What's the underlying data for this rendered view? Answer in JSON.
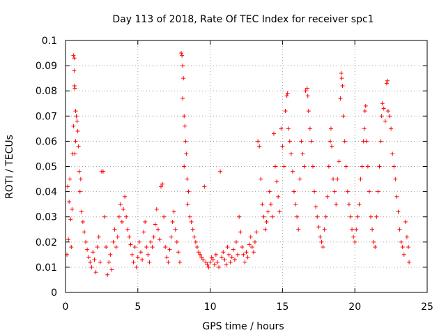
{
  "chart_data": {
    "type": "scatter",
    "title": "Day 113 of 2018, Rate Of TEC Index for receiver spc1",
    "xlabel": "GPS time / hours",
    "ylabel": "ROTI / TECUs",
    "xlim": [
      0,
      25
    ],
    "ylim": [
      0,
      0.1
    ],
    "xticks": [
      0,
      5,
      10,
      15,
      20,
      25
    ],
    "yticks": [
      0,
      0.01,
      0.02,
      0.03,
      0.04,
      0.05,
      0.06,
      0.07,
      0.08,
      0.09,
      0.1
    ],
    "xtick_labels": [
      "0",
      "5",
      "10",
      "15",
      "20",
      "25"
    ],
    "ytick_labels": [
      "0",
      "0.01",
      "0.02",
      "0.03",
      "0.04",
      "0.05",
      "0.06",
      "0.07",
      "0.08",
      "0.09",
      "0.1"
    ],
    "grid": true,
    "marker": "+",
    "series": [
      {
        "name": "ROTI",
        "color": "#ff0000",
        "points": [
          [
            0.1,
            0.015
          ],
          [
            0.15,
            0.042
          ],
          [
            0.2,
            0.021
          ],
          [
            0.25,
            0.036
          ],
          [
            0.3,
            0.045
          ],
          [
            0.35,
            0.029
          ],
          [
            0.4,
            0.018
          ],
          [
            0.45,
            0.033
          ],
          [
            0.5,
            0.055
          ],
          [
            0.55,
            0.066
          ],
          [
            0.55,
            0.094
          ],
          [
            0.6,
            0.093
          ],
          [
            0.6,
            0.088
          ],
          [
            0.62,
            0.082
          ],
          [
            0.65,
            0.081
          ],
          [
            0.7,
            0.072
          ],
          [
            0.75,
            0.07
          ],
          [
            0.8,
            0.068
          ],
          [
            0.85,
            0.064
          ],
          [
            0.9,
            0.058
          ],
          [
            0.7,
            0.06
          ],
          [
            0.65,
            0.055
          ],
          [
            0.95,
            0.048
          ],
          [
            1.0,
            0.04
          ],
          [
            1.05,
            0.045
          ],
          [
            1.1,
            0.032
          ],
          [
            1.2,
            0.028
          ],
          [
            1.3,
            0.024
          ],
          [
            1.4,
            0.02
          ],
          [
            1.5,
            0.017
          ],
          [
            1.6,
            0.014
          ],
          [
            1.7,
            0.012
          ],
          [
            1.8,
            0.01
          ],
          [
            1.9,
            0.016
          ],
          [
            2.0,
            0.013
          ],
          [
            2.1,
            0.008
          ],
          [
            2.2,
            0.018
          ],
          [
            2.3,
            0.022
          ],
          [
            2.4,
            0.012
          ],
          [
            2.5,
            0.048
          ],
          [
            2.6,
            0.048
          ],
          [
            2.7,
            0.03
          ],
          [
            2.8,
            0.018
          ],
          [
            2.9,
            0.007
          ],
          [
            3.0,
            0.012
          ],
          [
            3.1,
            0.015
          ],
          [
            3.2,
            0.009
          ],
          [
            3.3,
            0.02
          ],
          [
            3.4,
            0.025
          ],
          [
            3.5,
            0.018
          ],
          [
            3.6,
            0.022
          ],
          [
            3.7,
            0.03
          ],
          [
            3.8,
            0.035
          ],
          [
            3.9,
            0.028
          ],
          [
            4.0,
            0.033
          ],
          [
            4.1,
            0.038
          ],
          [
            4.2,
            0.03
          ],
          [
            4.3,
            0.025
          ],
          [
            4.4,
            0.022
          ],
          [
            4.5,
            0.019
          ],
          [
            4.6,
            0.015
          ],
          [
            4.7,
            0.012
          ],
          [
            4.8,
            0.018
          ],
          [
            4.9,
            0.01
          ],
          [
            5.0,
            0.014
          ],
          [
            5.1,
            0.02
          ],
          [
            5.2,
            0.016
          ],
          [
            5.3,
            0.013
          ],
          [
            5.4,
            0.024
          ],
          [
            5.5,
            0.028
          ],
          [
            5.6,
            0.018
          ],
          [
            5.7,
            0.015
          ],
          [
            5.8,
            0.012
          ],
          [
            5.9,
            0.02
          ],
          [
            6.0,
            0.018
          ],
          [
            6.1,
            0.022
          ],
          [
            6.2,
            0.027
          ],
          [
            6.3,
            0.033
          ],
          [
            6.4,
            0.025
          ],
          [
            6.5,
            0.021
          ],
          [
            6.6,
            0.042
          ],
          [
            6.7,
            0.043
          ],
          [
            6.8,
            0.03
          ],
          [
            6.9,
            0.018
          ],
          [
            7.0,
            0.014
          ],
          [
            7.1,
            0.012
          ],
          [
            7.2,
            0.017
          ],
          [
            7.3,
            0.022
          ],
          [
            7.4,
            0.028
          ],
          [
            7.5,
            0.032
          ],
          [
            7.6,
            0.025
          ],
          [
            7.7,
            0.02
          ],
          [
            7.8,
            0.016
          ],
          [
            7.9,
            0.012
          ],
          [
            8.0,
            0.095
          ],
          [
            8.05,
            0.094
          ],
          [
            8.1,
            0.09
          ],
          [
            8.15,
            0.085
          ],
          [
            8.1,
            0.077
          ],
          [
            8.2,
            0.07
          ],
          [
            8.25,
            0.066
          ],
          [
            8.3,
            0.06
          ],
          [
            8.35,
            0.055
          ],
          [
            8.2,
            0.05
          ],
          [
            8.4,
            0.045
          ],
          [
            8.5,
            0.04
          ],
          [
            8.45,
            0.035
          ],
          [
            8.6,
            0.03
          ],
          [
            8.7,
            0.028
          ],
          [
            8.8,
            0.025
          ],
          [
            8.9,
            0.022
          ],
          [
            9.0,
            0.02
          ],
          [
            9.1,
            0.018
          ],
          [
            9.2,
            0.016
          ],
          [
            9.3,
            0.015
          ],
          [
            9.4,
            0.014
          ],
          [
            9.5,
            0.013
          ],
          [
            9.6,
            0.042
          ],
          [
            9.7,
            0.012
          ],
          [
            9.8,
            0.011
          ],
          [
            9.9,
            0.01
          ],
          [
            10.0,
            0.012
          ],
          [
            10.1,
            0.014
          ],
          [
            10.2,
            0.013
          ],
          [
            10.3,
            0.011
          ],
          [
            10.4,
            0.015
          ],
          [
            10.5,
            0.012
          ],
          [
            10.6,
            0.01
          ],
          [
            10.7,
            0.048
          ],
          [
            10.8,
            0.014
          ],
          [
            10.9,
            0.016
          ],
          [
            11.0,
            0.013
          ],
          [
            11.1,
            0.011
          ],
          [
            11.2,
            0.018
          ],
          [
            11.3,
            0.015
          ],
          [
            11.4,
            0.012
          ],
          [
            11.5,
            0.014
          ],
          [
            11.6,
            0.017
          ],
          [
            11.7,
            0.013
          ],
          [
            11.8,
            0.02
          ],
          [
            11.9,
            0.015
          ],
          [
            12.0,
            0.03
          ],
          [
            12.1,
            0.024
          ],
          [
            12.2,
            0.018
          ],
          [
            12.3,
            0.015
          ],
          [
            12.4,
            0.012
          ],
          [
            12.5,
            0.016
          ],
          [
            12.6,
            0.014
          ],
          [
            12.7,
            0.019
          ],
          [
            12.8,
            0.022
          ],
          [
            12.9,
            0.018
          ],
          [
            13.0,
            0.016
          ],
          [
            13.1,
            0.02
          ],
          [
            13.2,
            0.024
          ],
          [
            13.3,
            0.06
          ],
          [
            13.4,
            0.058
          ],
          [
            13.5,
            0.045
          ],
          [
            13.6,
            0.035
          ],
          [
            13.7,
            0.03
          ],
          [
            13.8,
            0.025
          ],
          [
            13.9,
            0.028
          ],
          [
            14.0,
            0.032
          ],
          [
            14.1,
            0.04
          ],
          [
            14.2,
            0.035
          ],
          [
            14.3,
            0.03
          ],
          [
            14.4,
            0.063
          ],
          [
            14.5,
            0.05
          ],
          [
            14.6,
            0.044
          ],
          [
            14.7,
            0.038
          ],
          [
            14.8,
            0.032
          ],
          [
            14.9,
            0.065
          ],
          [
            15.0,
            0.058
          ],
          [
            15.1,
            0.05
          ],
          [
            15.2,
            0.072
          ],
          [
            15.3,
            0.078
          ],
          [
            15.35,
            0.079
          ],
          [
            15.4,
            0.065
          ],
          [
            15.5,
            0.06
          ],
          [
            15.6,
            0.055
          ],
          [
            15.7,
            0.048
          ],
          [
            15.8,
            0.04
          ],
          [
            15.9,
            0.035
          ],
          [
            16.0,
            0.03
          ],
          [
            16.1,
            0.025
          ],
          [
            16.2,
            0.045
          ],
          [
            16.3,
            0.06
          ],
          [
            16.4,
            0.055
          ],
          [
            16.5,
            0.05
          ],
          [
            16.6,
            0.08
          ],
          [
            16.7,
            0.081
          ],
          [
            16.75,
            0.078
          ],
          [
            16.8,
            0.072
          ],
          [
            16.9,
            0.065
          ],
          [
            17.0,
            0.06
          ],
          [
            17.1,
            0.05
          ],
          [
            17.2,
            0.04
          ],
          [
            17.3,
            0.034
          ],
          [
            17.4,
            0.03
          ],
          [
            17.5,
            0.026
          ],
          [
            17.6,
            0.022
          ],
          [
            17.7,
            0.02
          ],
          [
            17.8,
            0.018
          ],
          [
            17.9,
            0.025
          ],
          [
            18.0,
            0.03
          ],
          [
            18.1,
            0.038
          ],
          [
            18.2,
            0.05
          ],
          [
            18.3,
            0.06
          ],
          [
            18.35,
            0.065
          ],
          [
            18.4,
            0.058
          ],
          [
            18.5,
            0.045
          ],
          [
            18.6,
            0.04
          ],
          [
            18.7,
            0.035
          ],
          [
            18.8,
            0.045
          ],
          [
            18.9,
            0.052
          ],
          [
            19.0,
            0.077
          ],
          [
            19.05,
            0.087
          ],
          [
            19.1,
            0.085
          ],
          [
            19.15,
            0.082
          ],
          [
            19.2,
            0.07
          ],
          [
            19.3,
            0.06
          ],
          [
            19.4,
            0.05
          ],
          [
            19.5,
            0.04
          ],
          [
            19.6,
            0.035
          ],
          [
            19.7,
            0.03
          ],
          [
            19.8,
            0.025
          ],
          [
            19.9,
            0.022
          ],
          [
            20.0,
            0.02
          ],
          [
            20.1,
            0.025
          ],
          [
            20.2,
            0.03
          ],
          [
            20.3,
            0.035
          ],
          [
            20.4,
            0.045
          ],
          [
            20.5,
            0.05
          ],
          [
            20.6,
            0.06
          ],
          [
            20.65,
            0.065
          ],
          [
            20.7,
            0.072
          ],
          [
            20.75,
            0.074
          ],
          [
            20.8,
            0.06
          ],
          [
            20.9,
            0.05
          ],
          [
            21.0,
            0.04
          ],
          [
            21.1,
            0.03
          ],
          [
            21.2,
            0.025
          ],
          [
            21.3,
            0.02
          ],
          [
            21.4,
            0.018
          ],
          [
            21.5,
            0.03
          ],
          [
            21.6,
            0.04
          ],
          [
            21.7,
            0.05
          ],
          [
            21.8,
            0.06
          ],
          [
            21.85,
            0.07
          ],
          [
            21.9,
            0.075
          ],
          [
            22.0,
            0.073
          ],
          [
            22.1,
            0.068
          ],
          [
            22.2,
            0.083
          ],
          [
            22.25,
            0.084
          ],
          [
            22.3,
            0.072
          ],
          [
            22.4,
            0.07
          ],
          [
            22.5,
            0.065
          ],
          [
            22.6,
            0.055
          ],
          [
            22.7,
            0.05
          ],
          [
            22.8,
            0.045
          ],
          [
            22.9,
            0.038
          ],
          [
            23.0,
            0.032
          ],
          [
            23.1,
            0.025
          ],
          [
            23.2,
            0.02
          ],
          [
            23.3,
            0.018
          ],
          [
            23.4,
            0.015
          ],
          [
            23.5,
            0.028
          ],
          [
            23.6,
            0.022
          ],
          [
            23.7,
            0.018
          ],
          [
            23.75,
            0.012
          ]
        ]
      }
    ]
  }
}
